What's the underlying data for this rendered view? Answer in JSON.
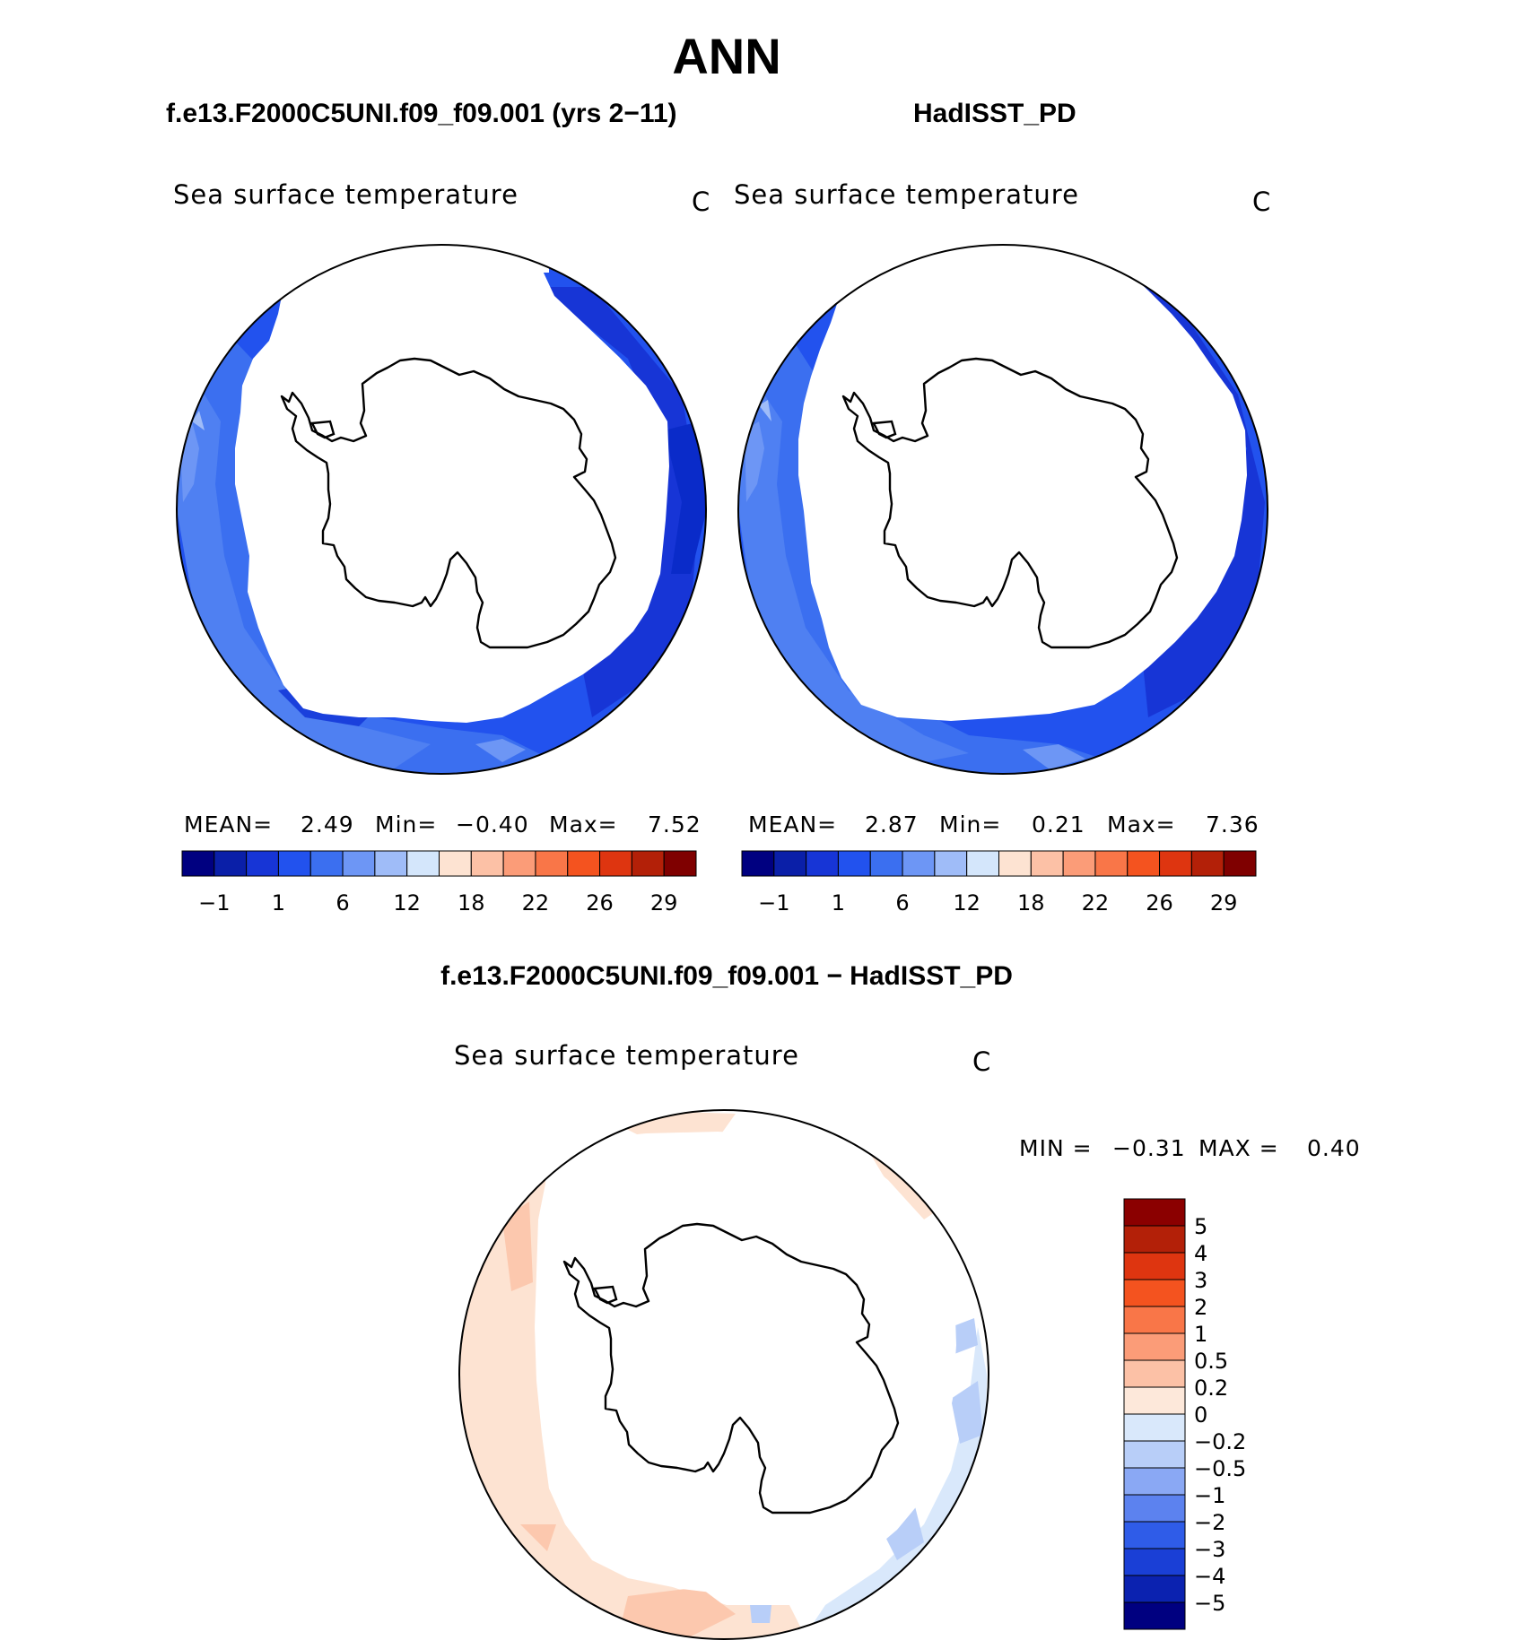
{
  "figure": {
    "main_title": "ANN",
    "case1_title": "f.e13.F2000C5UNI.f09_f09.001 (yrs 2-11)",
    "case2_title": "HadISST_PD",
    "diff_title": "f.e13.F2000C5UNI.f09_f09.001 - HadISST_PD"
  },
  "chart_data": [
    {
      "type": "heatmap",
      "projection": "south polar stereographic",
      "title": "Sea surface temperature",
      "units": "C",
      "stats": {
        "mean_label": "MEAN=",
        "mean": "2.49",
        "min_label": "Min=",
        "min": "-0.40",
        "max_label": "Max=",
        "max": "7.52"
      },
      "colorbar": {
        "orientation": "horizontal",
        "levels": [
          "-1",
          "1",
          "6",
          "12",
          "18",
          "22",
          "26",
          "29"
        ],
        "colors": [
          "#000080",
          "#0a1fa8",
          "#1735d6",
          "#2252ee",
          "#3b6ff0",
          "#6d96f5",
          "#9fbcf8",
          "#d4e6fb",
          "#fde3d2",
          "#fcc1a6",
          "#fb9c78",
          "#f97648",
          "#f4531f",
          "#de3510",
          "#b32008",
          "#7f0000"
        ]
      }
    },
    {
      "type": "heatmap",
      "projection": "south polar stereographic",
      "title": "Sea surface temperature",
      "units": "C",
      "stats": {
        "mean_label": "MEAN=",
        "mean": "2.87",
        "min_label": "Min=",
        "min": "0.21",
        "max_label": "Max=",
        "max": "7.36"
      },
      "colorbar": {
        "orientation": "horizontal",
        "levels": [
          "-1",
          "1",
          "6",
          "12",
          "18",
          "22",
          "26",
          "29"
        ],
        "colors": [
          "#000080",
          "#0a1fa8",
          "#1735d6",
          "#2252ee",
          "#3b6ff0",
          "#6d96f5",
          "#9fbcf8",
          "#d4e6fb",
          "#fde3d2",
          "#fcc1a6",
          "#fb9c78",
          "#f97648",
          "#f4531f",
          "#de3510",
          "#b32008",
          "#7f0000"
        ]
      }
    },
    {
      "type": "heatmap",
      "projection": "south polar stereographic",
      "title": "Sea surface temperature",
      "units": "C",
      "stats": {
        "min_label": "MIN =",
        "min": "-0.31",
        "max_label": "MAX =",
        "max": "0.40"
      },
      "colorbar": {
        "orientation": "vertical",
        "levels": [
          "5",
          "4",
          "3",
          "2",
          "1",
          "0.5",
          "0.2",
          "0",
          "-0.2",
          "-0.5",
          "-1",
          "-2",
          "-3",
          "-4",
          "-5"
        ],
        "colors": [
          "#8b0000",
          "#b32008",
          "#de3510",
          "#f4531f",
          "#f97648",
          "#fb9c78",
          "#fcc1a6",
          "#fde8da",
          "#d9e8fb",
          "#b8cef8",
          "#8aa8f4",
          "#5c82ef",
          "#2f5ce8",
          "#1a3fd6",
          "#0b22b0",
          "#000080"
        ]
      }
    }
  ]
}
